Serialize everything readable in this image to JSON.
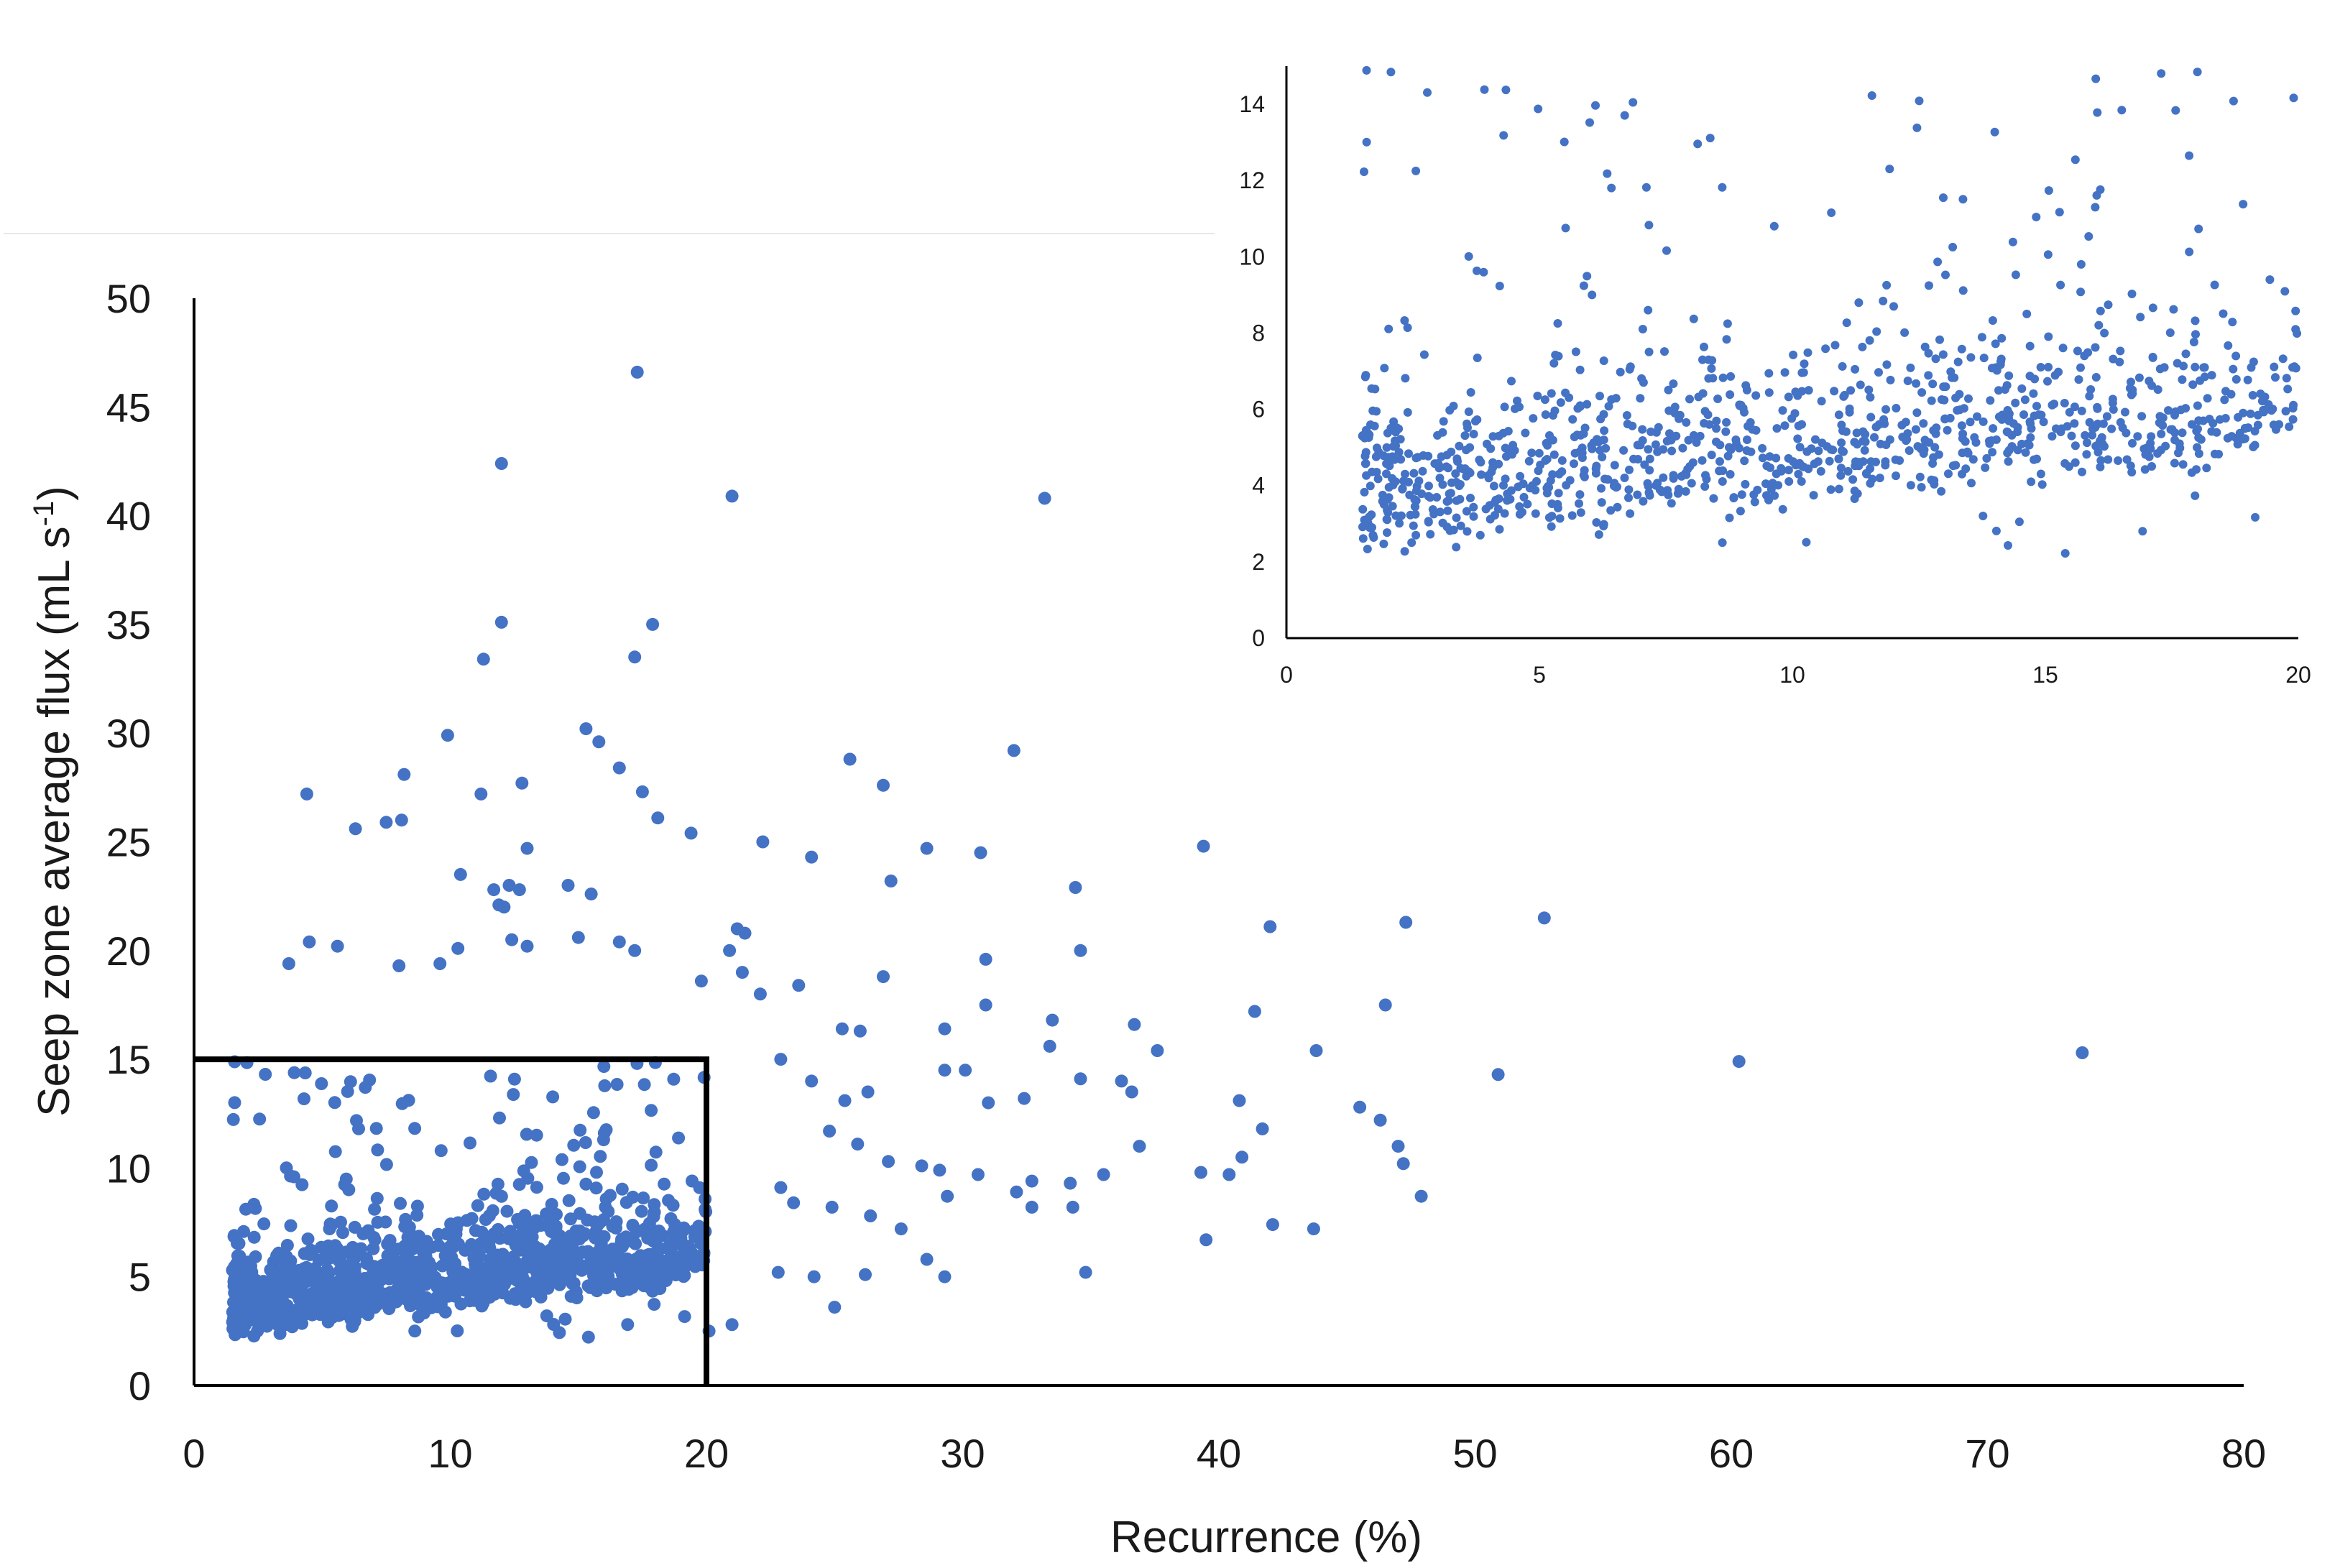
{
  "point_color": "#4472c4",
  "chart_data": [
    {
      "id": "main",
      "type": "scatter",
      "title": "",
      "xlabel": "Recurrence (%)",
      "ylabel_main": "Seep zone average flux (mL s",
      "ylabel_sup": "-1",
      "ylabel_close": ")",
      "xlim": [
        0,
        80
      ],
      "ylim": [
        0,
        50
      ],
      "xticks": [
        "0",
        "10",
        "20",
        "30",
        "40",
        "50",
        "60",
        "70",
        "80"
      ],
      "yticks": [
        "0",
        "5",
        "10",
        "15",
        "20",
        "25",
        "30",
        "35",
        "40",
        "45",
        "50"
      ],
      "grid": false,
      "highlight_box": {
        "x": [
          0,
          20
        ],
        "y": [
          0,
          15
        ]
      },
      "points_note": "dense cluster (~1000 points) within recurrence 1.5-20 %, flux 2-15 mL/s; listed points are the sparser outliers",
      "series": [
        {
          "points": [
            [
              17.3,
              46.6
            ],
            [
              12.0,
              42.4
            ],
            [
              21.0,
              40.9
            ],
            [
              33.2,
              40.8
            ],
            [
              12.0,
              35.1
            ],
            [
              17.9,
              35.0
            ],
            [
              11.3,
              33.4
            ],
            [
              17.2,
              33.5
            ],
            [
              9.9,
              29.9
            ],
            [
              15.3,
              30.2
            ],
            [
              15.8,
              29.6
            ],
            [
              32.0,
              29.2
            ],
            [
              25.6,
              28.8
            ],
            [
              8.2,
              28.1
            ],
            [
              16.6,
              28.4
            ],
            [
              26.9,
              27.6
            ],
            [
              4.4,
              27.2
            ],
            [
              11.2,
              27.2
            ],
            [
              12.8,
              27.7
            ],
            [
              17.5,
              27.3
            ],
            [
              7.5,
              25.9
            ],
            [
              8.1,
              26.0
            ],
            [
              6.3,
              25.6
            ],
            [
              18.1,
              26.1
            ],
            [
              19.4,
              25.4
            ],
            [
              22.2,
              25.0
            ],
            [
              24.1,
              24.3
            ],
            [
              28.6,
              24.7
            ],
            [
              30.7,
              24.5
            ],
            [
              39.4,
              24.8
            ],
            [
              13.0,
              24.7
            ],
            [
              10.4,
              23.5
            ],
            [
              27.2,
              23.2
            ],
            [
              11.7,
              22.8
            ],
            [
              12.3,
              23.0
            ],
            [
              12.7,
              22.8
            ],
            [
              14.6,
              23.0
            ],
            [
              15.5,
              22.6
            ],
            [
              34.4,
              22.9
            ],
            [
              11.9,
              22.1
            ],
            [
              12.1,
              22.0
            ],
            [
              52.7,
              21.5
            ],
            [
              47.3,
              21.3
            ],
            [
              42.0,
              21.1
            ],
            [
              21.2,
              21.0
            ],
            [
              21.5,
              20.8
            ],
            [
              4.5,
              20.4
            ],
            [
              5.6,
              20.2
            ],
            [
              34.6,
              20.0
            ],
            [
              10.3,
              20.1
            ],
            [
              12.4,
              20.5
            ],
            [
              13.0,
              20.2
            ],
            [
              15.0,
              20.6
            ],
            [
              16.6,
              20.4
            ],
            [
              17.2,
              20.0
            ],
            [
              20.9,
              20.0
            ],
            [
              30.9,
              19.6
            ],
            [
              3.7,
              19.4
            ],
            [
              8.0,
              19.3
            ],
            [
              9.6,
              19.4
            ],
            [
              21.4,
              19.0
            ],
            [
              26.9,
              18.8
            ],
            [
              19.8,
              18.6
            ],
            [
              22.1,
              18.0
            ],
            [
              23.6,
              18.4
            ],
            [
              25.3,
              16.4
            ],
            [
              26.0,
              16.3
            ],
            [
              29.3,
              16.4
            ],
            [
              33.5,
              16.8
            ],
            [
              36.7,
              16.6
            ],
            [
              41.4,
              17.2
            ],
            [
              46.5,
              17.5
            ],
            [
              30.9,
              17.5
            ],
            [
              22.9,
              15.0
            ],
            [
              33.4,
              15.6
            ],
            [
              37.6,
              15.4
            ],
            [
              43.8,
              15.4
            ],
            [
              50.9,
              14.3
            ],
            [
              60.3,
              14.9
            ],
            [
              73.7,
              15.3
            ],
            [
              24.1,
              14.0
            ],
            [
              25.4,
              13.1
            ],
            [
              26.3,
              13.5
            ],
            [
              29.3,
              14.5
            ],
            [
              30.1,
              14.5
            ],
            [
              31.0,
              13.0
            ],
            [
              32.4,
              13.2
            ],
            [
              34.6,
              14.1
            ],
            [
              36.2,
              14.0
            ],
            [
              36.6,
              13.5
            ],
            [
              40.8,
              13.1
            ],
            [
              45.5,
              12.8
            ],
            [
              46.3,
              12.2
            ],
            [
              24.8,
              11.7
            ],
            [
              25.9,
              11.1
            ],
            [
              27.1,
              10.3
            ],
            [
              28.4,
              10.1
            ],
            [
              29.1,
              9.9
            ],
            [
              30.6,
              9.7
            ],
            [
              32.7,
              9.4
            ],
            [
              34.2,
              9.3
            ],
            [
              35.5,
              9.7
            ],
            [
              36.9,
              11.0
            ],
            [
              39.3,
              9.8
            ],
            [
              40.4,
              9.7
            ],
            [
              40.9,
              10.5
            ],
            [
              41.7,
              11.8
            ],
            [
              47.0,
              11.0
            ],
            [
              47.2,
              10.2
            ],
            [
              47.9,
              8.7
            ],
            [
              22.9,
              9.1
            ],
            [
              23.4,
              8.4
            ],
            [
              24.9,
              8.2
            ],
            [
              26.4,
              7.8
            ],
            [
              27.6,
              7.2
            ],
            [
              29.4,
              8.7
            ],
            [
              32.1,
              8.9
            ],
            [
              32.7,
              8.2
            ],
            [
              34.3,
              8.2
            ],
            [
              39.5,
              6.7
            ],
            [
              42.1,
              7.4
            ],
            [
              43.7,
              7.2
            ],
            [
              34.8,
              5.2
            ],
            [
              29.3,
              5.0
            ],
            [
              28.6,
              5.8
            ],
            [
              26.2,
              5.1
            ],
            [
              24.2,
              5.0
            ],
            [
              22.8,
              5.2
            ],
            [
              25.0,
              3.6
            ],
            [
              21.0,
              2.8
            ],
            [
              20.1,
              2.5
            ]
          ]
        }
      ]
    },
    {
      "id": "inset",
      "type": "scatter",
      "title": "",
      "xlabel": "",
      "ylabel": "",
      "xlim": [
        0,
        20
      ],
      "ylim": [
        0,
        15
      ],
      "xticks": [
        "0",
        "5",
        "10",
        "15",
        "20"
      ],
      "yticks": [
        "0",
        "2",
        "4",
        "6",
        "8",
        "10",
        "12",
        "14"
      ],
      "grid": false,
      "points_note": "zoom of the 0-20 %, 0-15 mL/s region; dense cloud of ~1000 points between x 1.5-20 and y 2-15"
    }
  ]
}
